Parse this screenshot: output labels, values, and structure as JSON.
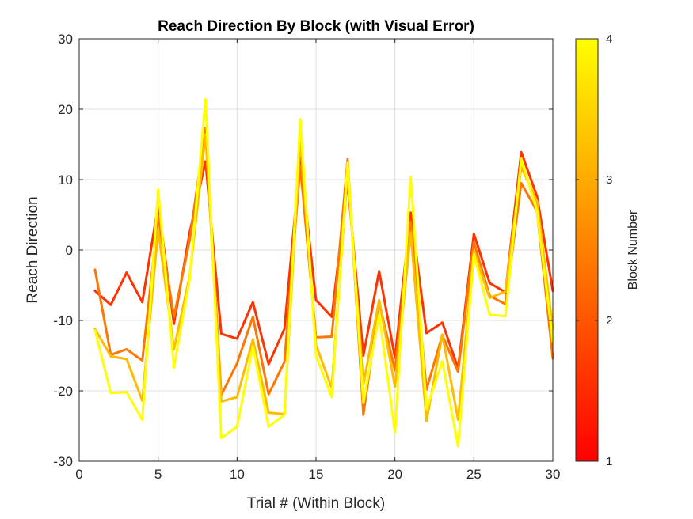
{
  "chart_data": {
    "type": "line",
    "title": "Reach Direction By Block (with Visual Error)",
    "xlabel": "Trial # (Within Block)",
    "ylabel": "Reach Direction",
    "xlim": [
      0,
      30
    ],
    "ylim": [
      -30,
      30
    ],
    "xticks": [
      0,
      5,
      10,
      15,
      20,
      25,
      30
    ],
    "yticks": [
      -30,
      -20,
      -10,
      0,
      10,
      20,
      30
    ],
    "grid": true,
    "x": [
      1,
      2,
      3,
      4,
      5,
      6,
      7,
      8,
      9,
      10,
      11,
      12,
      13,
      14,
      15,
      16,
      17,
      18,
      19,
      20,
      21,
      22,
      23,
      24,
      25,
      26,
      27,
      28,
      29,
      30
    ],
    "series": [
      {
        "block": 1,
        "color": "#ff3300",
        "values": [
          -5.8,
          -7.8,
          -3.2,
          -7.4,
          6.4,
          -10.5,
          2.5,
          12.6,
          -11.9,
          -12.6,
          -7.4,
          -16.2,
          -11.2,
          13.0,
          -7.1,
          -9.5,
          9.7,
          -15.0,
          -3.0,
          -15.3,
          5.3,
          -11.8,
          -10.3,
          -16.8,
          2.3,
          -4.7,
          -6.0,
          13.9,
          7.6,
          -5.8
        ]
      },
      {
        "block": 2,
        "color": "#ff7700",
        "values": [
          -2.8,
          -14.9,
          -14.1,
          -15.7,
          4.8,
          -9.5,
          1.4,
          17.4,
          -20.6,
          -16.1,
          -9.5,
          -20.5,
          -15.9,
          12.0,
          -12.4,
          -12.3,
          12.9,
          -23.4,
          -7.4,
          -17.1,
          4.0,
          -19.8,
          -12.1,
          -17.3,
          1.1,
          -6.5,
          -7.7,
          9.5,
          5.5,
          -15.4
        ]
      },
      {
        "block": 3,
        "color": "#ffbb00",
        "values": [
          -11.2,
          -15.1,
          -15.5,
          -21.4,
          2.9,
          -14.1,
          -3.7,
          16.4,
          -21.5,
          -20.9,
          -12.7,
          -23.1,
          -23.3,
          15.9,
          -13.5,
          -19.6,
          11.1,
          -19.1,
          -7.1,
          -19.4,
          2.5,
          -24.3,
          -12.0,
          -24.1,
          -0.2,
          -6.8,
          -5.9,
          11.8,
          6.9,
          -11.2
        ]
      },
      {
        "block": 4,
        "color": "#ffff00",
        "values": [
          -11.4,
          -20.3,
          -20.2,
          -24.1,
          8.6,
          -16.7,
          -4.1,
          21.4,
          -26.7,
          -25.1,
          -13.7,
          -25.1,
          -23.4,
          18.6,
          -15.0,
          -20.9,
          12.4,
          -21.7,
          -9.1,
          -25.9,
          10.4,
          -22.6,
          -15.8,
          -27.9,
          -0.6,
          -9.2,
          -9.4,
          13.0,
          5.5,
          -13.0
        ]
      }
    ],
    "colorbar": {
      "label": "Block Number",
      "ticks": [
        1,
        2,
        3,
        4
      ],
      "range": [
        1,
        4
      ],
      "colors": [
        "#ff0000",
        "#ff8000",
        "#ffff00"
      ]
    }
  }
}
